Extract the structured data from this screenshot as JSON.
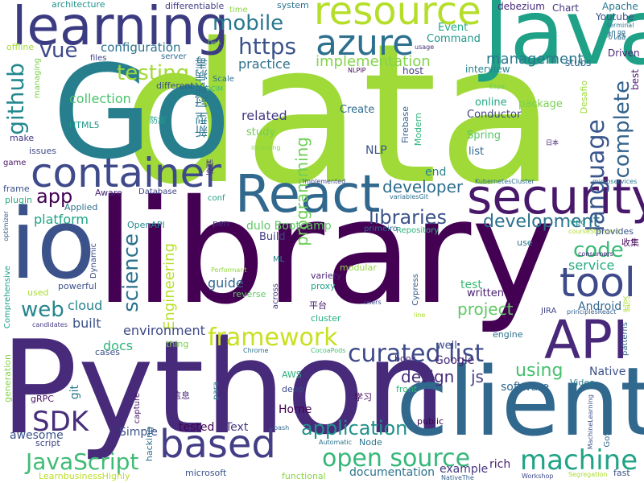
{
  "words": [
    {
      "text": "library",
      "color": "#440154"
    },
    {
      "text": "data",
      "color": "#a0da39"
    },
    {
      "text": "Python",
      "color": "#472a7a"
    },
    {
      "text": "Go",
      "color": "#277f8e"
    },
    {
      "text": "client",
      "color": "#31688e"
    },
    {
      "text": "Java",
      "color": "#1fa187"
    },
    {
      "text": "io",
      "color": "#3b528b"
    },
    {
      "text": "learning",
      "color": "#3b3b82"
    },
    {
      "text": "React",
      "color": "#31688e"
    },
    {
      "text": "security",
      "color": "#48186a"
    },
    {
      "text": "container",
      "color": "#3e4a89"
    },
    {
      "text": "API",
      "color": "#482878"
    },
    {
      "text": "tool",
      "color": "#3e4a89"
    },
    {
      "text": "resource",
      "color": "#b5de2b"
    },
    {
      "text": "azure",
      "color": "#2d708e"
    },
    {
      "text": "based",
      "color": "#433e85"
    },
    {
      "text": "SDK",
      "color": "#472d7b"
    },
    {
      "text": "machine",
      "color": "#20a386"
    },
    {
      "text": "open source",
      "color": "#35b779"
    },
    {
      "text": "JavaScript",
      "color": "#3fbc73"
    },
    {
      "text": "curated list",
      "color": "#3e4a89"
    },
    {
      "text": "framework",
      "color": "#c8e020"
    },
    {
      "text": "application",
      "color": "#21918c"
    },
    {
      "text": "mobile",
      "color": "#2a788e"
    },
    {
      "text": "https",
      "color": "#3b528b"
    },
    {
      "text": "language",
      "color": "#39568c"
    },
    {
      "text": "complete",
      "color": "#33638d"
    },
    {
      "text": "Vue",
      "color": "#3e4989"
    },
    {
      "text": "testing",
      "color": "#a2da37"
    },
    {
      "text": "github",
      "color": "#23898e"
    },
    {
      "text": "web",
      "color": "#25858e"
    },
    {
      "text": "code",
      "color": "#3aba76"
    },
    {
      "text": "science",
      "color": "#2c728e"
    },
    {
      "text": "development",
      "color": "#2c728e"
    },
    {
      "text": "libraries",
      "color": "#3b528b"
    },
    {
      "text": "app",
      "color": "#440154"
    },
    {
      "text": "developer",
      "color": "#2e6e8e"
    },
    {
      "text": "project",
      "color": "#5ec962"
    },
    {
      "text": "using",
      "color": "#46c06f"
    },
    {
      "text": "programming",
      "color": "#6ece58"
    },
    {
      "text": "implementation",
      "color": "#84d44b"
    },
    {
      "text": "management",
      "color": "#2a788e"
    },
    {
      "text": "design",
      "color": "#472d7b"
    },
    {
      "text": "configuration",
      "color": "#2c728e"
    },
    {
      "text": "practice",
      "color": "#2d708e"
    },
    {
      "text": "collection",
      "color": "#4ac16d"
    },
    {
      "text": "platform",
      "color": "#20a486"
    },
    {
      "text": "Engineering",
      "color": "#b8de29"
    },
    {
      "text": "environment",
      "color": "#3e4a89"
    },
    {
      "text": "guide",
      "color": "#31688e"
    },
    {
      "text": "related",
      "color": "#443a83"
    },
    {
      "text": "service",
      "color": "#25ab82"
    },
    {
      "text": "docs",
      "color": "#31b57b"
    },
    {
      "text": "built",
      "color": "#3b528b"
    },
    {
      "text": "cloud",
      "color": "#26828e"
    },
    {
      "text": "Native",
      "color": "#3b528b"
    },
    {
      "text": "Google",
      "color": "#482878"
    },
    {
      "text": "software",
      "color": "#31688e"
    },
    {
      "text": "Android",
      "color": "#31688e"
    },
    {
      "text": "js",
      "color": "#424086"
    },
    {
      "text": "awesome",
      "color": "#3b528b"
    },
    {
      "text": "git",
      "color": "#2a788e"
    },
    {
      "text": "Simple",
      "color": "#3b528b"
    },
    {
      "text": "tested",
      "color": "#440154"
    },
    {
      "text": "Text",
      "color": "#453781"
    },
    {
      "text": "rich",
      "color": "#482071"
    },
    {
      "text": "documentation",
      "color": "#2c728e"
    },
    {
      "text": "example",
      "color": "#453781"
    },
    {
      "text": "test",
      "color": "#3aba76"
    },
    {
      "text": "written",
      "color": "#481f70"
    },
    {
      "text": "end",
      "color": "#26828e"
    },
    {
      "text": "Build",
      "color": "#433e85"
    },
    {
      "text": "Home",
      "color": "#440154"
    },
    {
      "text": "NLP",
      "color": "#3b528b"
    },
    {
      "text": "well",
      "color": "#3e4a89"
    },
    {
      "text": "list",
      "color": "#31688e"
    },
    {
      "text": "Spring",
      "color": "#56c667"
    },
    {
      "text": "online",
      "color": "#22a884"
    },
    {
      "text": "package",
      "color": "#7ad151"
    },
    {
      "text": "interview",
      "color": "#26828e"
    },
    {
      "text": "Conductor",
      "color": "#414487"
    },
    {
      "text": "Create",
      "color": "#2f6c8e"
    },
    {
      "text": "study",
      "color": "#6ece58"
    },
    {
      "text": "host",
      "color": "#433e85"
    },
    {
      "text": "Event",
      "color": "#22a884"
    },
    {
      "text": "Command",
      "color": "#1f978b"
    },
    {
      "text": "Chart",
      "color": "#453781"
    },
    {
      "text": "debezium",
      "color": "#472a7a"
    },
    {
      "text": "Apache",
      "color": "#2a788e"
    },
    {
      "text": "Youtube",
      "color": "#3b528b"
    },
    {
      "text": "terminal",
      "color": "#2a788e"
    },
    {
      "text": "Driven",
      "color": "#482576"
    },
    {
      "text": "stubs",
      "color": "#31688e"
    },
    {
      "text": "best",
      "color": "#48196b"
    },
    {
      "text": "机器",
      "color": "#2e6e8e"
    },
    {
      "text": "architecture",
      "color": "#1f948c"
    },
    {
      "text": "differentiable",
      "color": "#433e85"
    },
    {
      "text": "time",
      "color": "#8bd646"
    },
    {
      "text": "system",
      "color": "#2c728e"
    },
    {
      "text": "Don",
      "color": "#6ece58"
    },
    {
      "text": "offline",
      "color": "#a5db36"
    },
    {
      "text": "server",
      "color": "#31688e"
    },
    {
      "text": "files",
      "color": "#404588"
    },
    {
      "text": "usage",
      "color": "#472d7b"
    },
    {
      "text": "NLPIP",
      "color": "#46075a"
    },
    {
      "text": "Scale",
      "color": "#2c728e"
    },
    {
      "text": "DCIM",
      "color": "#3dbc74"
    },
    {
      "text": "managing",
      "color": "#7ad151"
    },
    {
      "text": "different",
      "color": "#3b528b"
    },
    {
      "text": "HTML5",
      "color": "#1f988b"
    },
    {
      "text": "防疫",
      "color": "#1f9e89"
    },
    {
      "text": "新型 冠状病毒",
      "color": "#2c728e"
    },
    {
      "text": "make",
      "color": "#453882"
    },
    {
      "text": "issues",
      "color": "#3e4a89"
    },
    {
      "text": "game",
      "color": "#471365"
    },
    {
      "text": "frame",
      "color": "#3b528b"
    },
    {
      "text": "plugin",
      "color": "#25ac82"
    },
    {
      "text": "optimizer",
      "color": "#355f8d"
    },
    {
      "text": "Applied",
      "color": "#2c728e"
    },
    {
      "text": "Aware",
      "color": "#482576"
    },
    {
      "text": "Database",
      "color": "#404588"
    },
    {
      "text": "疫情",
      "color": "#463480"
    },
    {
      "text": "implemented",
      "color": "#3e4a89"
    },
    {
      "text": "variablesGit",
      "color": "#2d708e"
    },
    {
      "text": "conf",
      "color": "#1fa088"
    },
    {
      "text": "including",
      "color": "#84d44b"
    },
    {
      "text": "Firebase",
      "color": "#33638d"
    },
    {
      "text": "Modern",
      "color": "#2eb37c"
    },
    {
      "text": "日本",
      "color": "#482475"
    },
    {
      "text": "Espa",
      "color": "#6ece58"
    },
    {
      "text": "Desafio",
      "color": "#9bd93c"
    },
    {
      "text": "KubernetesCluster",
      "color": "#2e6e8e"
    },
    {
      "text": "microservices",
      "color": "#29798e"
    },
    {
      "text": "OpenAPI",
      "color": "#23898e"
    },
    {
      "text": "pen",
      "color": "#453781"
    },
    {
      "text": "dulo Bootcamp",
      "color": "#5ec962"
    },
    {
      "text": "primeiro",
      "color": "#30698e"
    },
    {
      "text": "Repository",
      "color": "#2cb17e"
    },
    {
      "text": "courseStandard",
      "color": "#addc30"
    },
    {
      "text": "repo",
      "color": "#1f958b"
    },
    {
      "text": "provides",
      "color": "#3b528b"
    },
    {
      "text": "收集",
      "color": "#46085c"
    },
    {
      "text": "use",
      "color": "#2a788e"
    },
    {
      "text": "consumers",
      "color": "#482878"
    },
    {
      "text": "Comprehensive",
      "color": "#1fa287"
    },
    {
      "text": "used",
      "color": "#aadc32"
    },
    {
      "text": "powerful",
      "color": "#3b528b"
    },
    {
      "text": "Dynamic",
      "color": "#3e4a89"
    },
    {
      "text": "Performant",
      "color": "#95d840"
    },
    {
      "text": "ML",
      "color": "#26828e"
    },
    {
      "text": "modular",
      "color": "#95d840"
    },
    {
      "text": "variety",
      "color": "#482173"
    },
    {
      "text": "proxy",
      "color": "#1fa287"
    },
    {
      "text": "reverse",
      "color": "#5ec962"
    },
    {
      "text": "across",
      "color": "#453781"
    },
    {
      "text": "平台",
      "color": "#482071"
    },
    {
      "text": "cluster",
      "color": "#29af7f"
    },
    {
      "text": "users",
      "color": "#3e4a89"
    },
    {
      "text": "Cypress",
      "color": "#38588c"
    },
    {
      "text": "line",
      "color": "#ace032"
    },
    {
      "text": "JIRA",
      "color": "#404588"
    },
    {
      "text": "principlesReact",
      "color": "#35608d"
    },
    {
      "text": "武汉",
      "color": "#addc30"
    },
    {
      "text": "candidates",
      "color": "#443983"
    },
    {
      "text": "thing",
      "color": "#7ad151"
    },
    {
      "text": "Chrome",
      "color": "#2e6e8e"
    },
    {
      "text": "CocoaPods",
      "color": "#3fbc73"
    },
    {
      "text": "cases",
      "color": "#3b528b"
    },
    {
      "text": "engine",
      "color": "#2c728e"
    },
    {
      "text": "patterns",
      "color": "#31688e"
    },
    {
      "text": "book",
      "color": "#472d7b"
    },
    {
      "text": "AWS",
      "color": "#2eb37c"
    },
    {
      "text": "deep",
      "color": "#3e4a89"
    },
    {
      "text": "front",
      "color": "#35b779"
    },
    {
      "text": "Video",
      "color": "#2a788e"
    },
    {
      "text": "信息",
      "color": "#482878"
    },
    {
      "text": "学习",
      "color": "#440154"
    },
    {
      "text": "capture",
      "color": "#481467"
    },
    {
      "text": "para",
      "color": "#26828e"
    },
    {
      "text": "generation",
      "color": "#84d44b"
    },
    {
      "text": "gRPC",
      "color": "#471365"
    },
    {
      "text": "script",
      "color": "#404588"
    },
    {
      "text": "hacking",
      "color": "#2d708e"
    },
    {
      "text": "public",
      "color": "#440154"
    },
    {
      "text": "bash",
      "color": "#31688e"
    },
    {
      "text": "Automatic",
      "color": "#2c728e"
    },
    {
      "text": "Node",
      "color": "#2c728e"
    },
    {
      "text": "GoStack",
      "color": "#31688e"
    },
    {
      "text": "MachineLearning",
      "color": "#3b528b"
    },
    {
      "text": "LearnbusinessHighly",
      "color": "#b8de29"
    },
    {
      "text": "microsoft",
      "color": "#3b528b"
    },
    {
      "text": "functional",
      "color": "#8bd646"
    },
    {
      "text": "NativeThe",
      "color": "#355f8d"
    },
    {
      "text": "Workshop",
      "color": "#3e4a89"
    },
    {
      "text": "Segregation",
      "color": "#addc30"
    },
    {
      "text": "fast",
      "color": "#3b528b"
    }
  ]
}
